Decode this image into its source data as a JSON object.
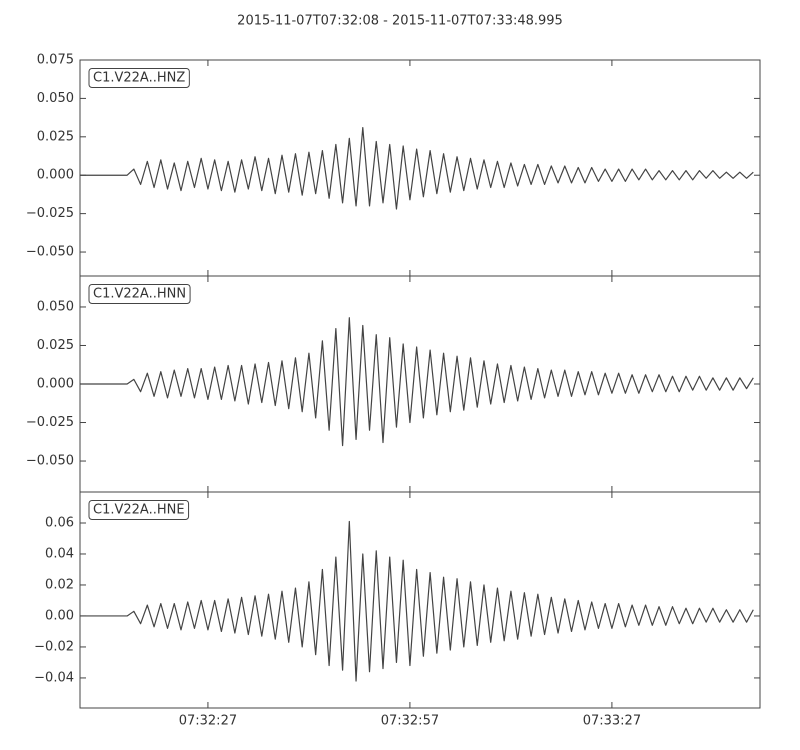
{
  "title": "2015-11-07T07:32:08  -  2015-11-07T07:33:48.995",
  "chart_data": [
    {
      "type": "line",
      "x": [
        0,
        1,
        2,
        3,
        4,
        5,
        6,
        7,
        8,
        9,
        10,
        11,
        12,
        13,
        14,
        15,
        16,
        17,
        18,
        19,
        20,
        21,
        22,
        23,
        24,
        25,
        26,
        27,
        28,
        29,
        30,
        31,
        32,
        33,
        34,
        35,
        36,
        37,
        38,
        39,
        40,
        41,
        42,
        43,
        44,
        45,
        46,
        47,
        48,
        49,
        50,
        51,
        52,
        53,
        54,
        55,
        56,
        57,
        58,
        59,
        60,
        61,
        62,
        63,
        64,
        65,
        66,
        67,
        68,
        69,
        70,
        71,
        72,
        73,
        74,
        75,
        76,
        77,
        78,
        79,
        80,
        81,
        82,
        83,
        84,
        85,
        86,
        87,
        88,
        89,
        90,
        91,
        92,
        93,
        94,
        95,
        96,
        97,
        98,
        99,
        100
      ],
      "series": [
        {
          "name": "C1.V22A..HNZ",
          "color": "#444444",
          "values": [
            0,
            0,
            0,
            0,
            0,
            0,
            0,
            0,
            0.004,
            -0.006,
            0.009,
            -0.008,
            0.01,
            -0.009,
            0.008,
            -0.01,
            0.009,
            -0.008,
            0.011,
            -0.009,
            0.01,
            -0.01,
            0.009,
            -0.011,
            0.01,
            -0.009,
            0.012,
            -0.01,
            0.011,
            -0.012,
            0.013,
            -0.011,
            0.014,
            -0.013,
            0.015,
            -0.012,
            0.016,
            -0.015,
            0.02,
            -0.018,
            0.024,
            -0.02,
            0.031,
            -0.02,
            0.022,
            -0.018,
            0.02,
            -0.022,
            0.019,
            -0.016,
            0.017,
            -0.014,
            0.016,
            -0.012,
            0.014,
            -0.011,
            0.012,
            -0.01,
            0.011,
            -0.009,
            0.01,
            -0.008,
            0.009,
            -0.008,
            0.008,
            -0.007,
            0.007,
            -0.006,
            0.007,
            -0.006,
            0.006,
            -0.005,
            0.006,
            -0.005,
            0.005,
            -0.005,
            0.005,
            -0.004,
            0.004,
            -0.004,
            0.004,
            -0.004,
            0.004,
            -0.003,
            0.004,
            -0.003,
            0.003,
            -0.003,
            0.003,
            -0.003,
            0.003,
            -0.003,
            0.003,
            -0.002,
            0.003,
            -0.002,
            0.002,
            -0.002,
            0.002,
            -0.002,
            0.002
          ]
        }
      ],
      "xlim": [
        0,
        100.995
      ],
      "ylim": [
        -0.0656,
        0.075
      ],
      "yticks": [
        0.075,
        {
          "value": 0.05,
          "label": "0.050"
        },
        0.025,
        {
          "value": 0,
          "label": "0.000"
        },
        {
          "value": -0.025,
          "label": "−0.025"
        },
        {
          "value": -0.05,
          "label": "−0.050"
        }
      ]
    },
    {
      "type": "line",
      "x": [
        0,
        1,
        2,
        3,
        4,
        5,
        6,
        7,
        8,
        9,
        10,
        11,
        12,
        13,
        14,
        15,
        16,
        17,
        18,
        19,
        20,
        21,
        22,
        23,
        24,
        25,
        26,
        27,
        28,
        29,
        30,
        31,
        32,
        33,
        34,
        35,
        36,
        37,
        38,
        39,
        40,
        41,
        42,
        43,
        44,
        45,
        46,
        47,
        48,
        49,
        50,
        51,
        52,
        53,
        54,
        55,
        56,
        57,
        58,
        59,
        60,
        61,
        62,
        63,
        64,
        65,
        66,
        67,
        68,
        69,
        70,
        71,
        72,
        73,
        74,
        75,
        76,
        77,
        78,
        79,
        80,
        81,
        82,
        83,
        84,
        85,
        86,
        87,
        88,
        89,
        90,
        91,
        92,
        93,
        94,
        95,
        96,
        97,
        98,
        99,
        100
      ],
      "series": [
        {
          "name": "C1.V22A..HNN",
          "color": "#444444",
          "values": [
            0,
            0,
            0,
            0,
            0,
            0,
            0,
            0,
            0.003,
            -0.005,
            0.007,
            -0.008,
            0.008,
            -0.009,
            0.009,
            -0.008,
            0.01,
            -0.009,
            0.01,
            -0.01,
            0.011,
            -0.01,
            0.012,
            -0.011,
            0.012,
            -0.013,
            0.013,
            -0.012,
            0.014,
            -0.014,
            0.015,
            -0.016,
            0.017,
            -0.018,
            0.02,
            -0.022,
            0.028,
            -0.03,
            0.036,
            -0.04,
            0.043,
            -0.036,
            0.038,
            -0.03,
            0.032,
            -0.038,
            0.03,
            -0.028,
            0.026,
            -0.025,
            0.024,
            -0.022,
            0.022,
            -0.02,
            0.02,
            -0.018,
            0.018,
            -0.017,
            0.017,
            -0.015,
            0.015,
            -0.013,
            0.013,
            -0.012,
            0.012,
            -0.011,
            0.011,
            -0.01,
            0.01,
            -0.009,
            0.009,
            -0.008,
            0.009,
            -0.008,
            0.008,
            -0.007,
            0.008,
            -0.007,
            0.007,
            -0.006,
            0.007,
            -0.006,
            0.006,
            -0.006,
            0.006,
            -0.005,
            0.006,
            -0.005,
            0.005,
            -0.005,
            0.005,
            -0.004,
            0.005,
            -0.004,
            0.004,
            -0.004,
            0.004,
            -0.004,
            0.004,
            -0.003,
            0.004
          ]
        }
      ],
      "xlim": [
        0,
        100.995
      ],
      "ylim": [
        -0.0701,
        0.0701
      ],
      "yticks": [
        {
          "value": 0.05,
          "label": "0.050"
        },
        0.025,
        {
          "value": 0,
          "label": "0.000"
        },
        {
          "value": -0.025,
          "label": "−0.025"
        },
        {
          "value": -0.05,
          "label": "−0.050"
        }
      ]
    },
    {
      "type": "line",
      "x": [
        0,
        1,
        2,
        3,
        4,
        5,
        6,
        7,
        8,
        9,
        10,
        11,
        12,
        13,
        14,
        15,
        16,
        17,
        18,
        19,
        20,
        21,
        22,
        23,
        24,
        25,
        26,
        27,
        28,
        29,
        30,
        31,
        32,
        33,
        34,
        35,
        36,
        37,
        38,
        39,
        40,
        41,
        42,
        43,
        44,
        45,
        46,
        47,
        48,
        49,
        50,
        51,
        52,
        53,
        54,
        55,
        56,
        57,
        58,
        59,
        60,
        61,
        62,
        63,
        64,
        65,
        66,
        67,
        68,
        69,
        70,
        71,
        72,
        73,
        74,
        75,
        76,
        77,
        78,
        79,
        80,
        81,
        82,
        83,
        84,
        85,
        86,
        87,
        88,
        89,
        90,
        91,
        92,
        93,
        94,
        95,
        96,
        97,
        98,
        99,
        100
      ],
      "series": [
        {
          "name": "C1.V22A..HNE",
          "color": "#444444",
          "values": [
            0,
            0,
            0,
            0,
            0,
            0,
            0,
            0,
            0.003,
            -0.005,
            0.007,
            -0.007,
            0.008,
            -0.008,
            0.008,
            -0.009,
            0.009,
            -0.008,
            0.01,
            -0.009,
            0.01,
            -0.01,
            0.011,
            -0.011,
            0.012,
            -0.012,
            0.013,
            -0.013,
            0.014,
            -0.015,
            0.016,
            -0.017,
            0.018,
            -0.02,
            0.022,
            -0.025,
            0.03,
            -0.032,
            0.038,
            -0.035,
            0.061,
            -0.042,
            0.04,
            -0.036,
            0.042,
            -0.034,
            0.038,
            -0.03,
            0.036,
            -0.032,
            0.03,
            -0.026,
            0.028,
            -0.024,
            0.025,
            -0.022,
            0.024,
            -0.02,
            0.022,
            -0.019,
            0.02,
            -0.017,
            0.018,
            -0.016,
            0.016,
            -0.015,
            0.015,
            -0.013,
            0.014,
            -0.012,
            0.012,
            -0.011,
            0.011,
            -0.01,
            0.01,
            -0.009,
            0.009,
            -0.008,
            0.008,
            -0.008,
            0.008,
            -0.007,
            0.007,
            -0.006,
            0.007,
            -0.006,
            0.006,
            -0.006,
            0.006,
            -0.005,
            0.005,
            -0.005,
            0.005,
            -0.004,
            0.005,
            -0.004,
            0.004,
            -0.004,
            0.004,
            -0.004,
            0.004
          ]
        }
      ],
      "xlim": [
        0,
        100.995
      ],
      "xticks": [
        {
          "value": 19,
          "label": "07:32:27"
        },
        {
          "value": 49,
          "label": "07:32:57"
        },
        {
          "value": 79,
          "label": "07:33:27"
        }
      ],
      "ylim": [
        -0.0594,
        0.08
      ],
      "yticks": [
        {
          "value": 0.06,
          "label": "0.06"
        },
        {
          "value": 0.04,
          "label": "0.04"
        },
        {
          "value": 0.02,
          "label": "0.02"
        },
        {
          "value": 0,
          "label": "0.00"
        },
        {
          "value": -0.02,
          "label": "−0.02"
        },
        {
          "value": -0.04,
          "label": "−0.04"
        }
      ]
    }
  ]
}
